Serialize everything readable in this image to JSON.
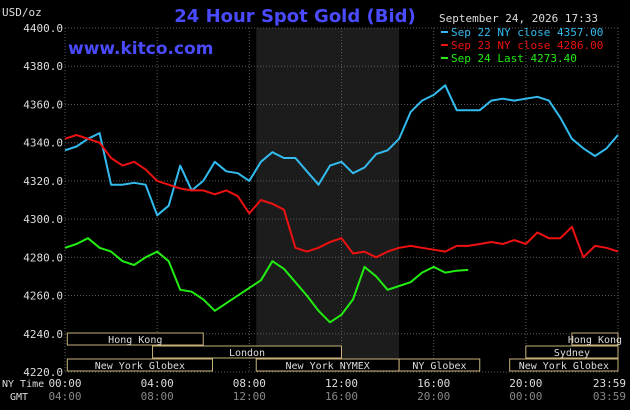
{
  "header": {
    "title": "24 Hour Spot Gold (Bid)",
    "units": "USD/oz",
    "website": "www.kitco.com",
    "datetime": "September 24, 2026 17:33"
  },
  "legend": [
    {
      "text": "Sep 22 NY close 4357.00",
      "color": "#33bbee"
    },
    {
      "text": "Sep 23 NY close 4286.00",
      "color": "#ee1111"
    },
    {
      "text": "Sep 24 Last 4273.40",
      "color": "#22ee11"
    }
  ],
  "chart_data": {
    "type": "line",
    "title": "24 Hour Spot Gold (Bid)",
    "ylabel": "USD/oz",
    "ylim": [
      4220,
      4400
    ],
    "yticks": [
      "4400.0",
      "4380.0",
      "4360.0",
      "4340.0",
      "4320.0",
      "4300.0",
      "4280.0",
      "4260.0",
      "4240.0",
      "4220.0"
    ],
    "xlim": [
      0,
      24
    ],
    "x_row_label": "NY Time",
    "x_row2_label": "GMT",
    "xticks_ny": [
      "00:00",
      "04:00",
      "08:00",
      "12:00",
      "16:00",
      "20:00",
      "23:59"
    ],
    "xticks_gmt": [
      "04:00",
      "08:00",
      "12:00",
      "16:00",
      "20:00",
      "00:00",
      "03:59"
    ],
    "grid": true,
    "legend_position": "top-right",
    "highlight_region": [
      8.3,
      14.5
    ],
    "series": [
      {
        "name": "Sep 22 NY close 4357.00",
        "color": "#33bbee",
        "x": [
          0,
          0.5,
          1,
          1.5,
          2,
          2.5,
          3,
          3.5,
          4,
          4.5,
          5,
          5.5,
          6,
          6.5,
          7,
          7.5,
          8,
          8.5,
          9,
          9.5,
          10,
          10.5,
          11,
          11.5,
          12,
          12.5,
          13,
          13.5,
          14,
          14.5,
          15,
          15.5,
          16,
          16.5,
          17,
          17.5,
          18,
          18.5,
          19,
          19.5,
          20,
          20.5,
          21,
          21.5,
          22,
          22.5,
          23,
          23.5,
          24
        ],
        "y": [
          4336,
          4338,
          4342,
          4345,
          4318,
          4318,
          4319,
          4318,
          4302,
          4307,
          4328,
          4315,
          4320,
          4330,
          4325,
          4324,
          4320,
          4330,
          4335,
          4332,
          4332,
          4325,
          4318,
          4328,
          4330,
          4324,
          4327,
          4334,
          4336,
          4342,
          4356,
          4362,
          4365,
          4370,
          4357,
          4357,
          4357,
          4362,
          4363,
          4362,
          4363,
          4364,
          4362,
          4353,
          4342,
          4337,
          4333,
          4337,
          4344
        ]
      },
      {
        "name": "Sep 23 NY close 4286.00",
        "color": "#ee1111",
        "x": [
          0,
          0.5,
          1,
          1.5,
          2,
          2.5,
          3,
          3.5,
          4,
          4.5,
          5,
          5.5,
          6,
          6.5,
          7,
          7.5,
          8,
          8.5,
          9,
          9.5,
          10,
          10.5,
          11,
          11.5,
          12,
          12.5,
          13,
          13.5,
          14,
          14.5,
          15,
          15.5,
          16,
          16.5,
          17,
          17.5,
          18,
          18.5,
          19,
          19.5,
          20,
          20.5,
          21,
          21.5,
          22,
          22.5,
          23,
          23.5,
          24
        ],
        "y": [
          4342,
          4344,
          4342,
          4340,
          4332,
          4328,
          4330,
          4326,
          4320,
          4318,
          4316,
          4315,
          4315,
          4313,
          4315,
          4312,
          4303,
          4310,
          4308,
          4305,
          4285,
          4283,
          4285,
          4288,
          4290,
          4282,
          4283,
          4280,
          4283,
          4285,
          4286,
          4285,
          4284,
          4283,
          4286,
          4286,
          4287,
          4288,
          4287,
          4289,
          4287,
          4293,
          4290,
          4290,
          4296,
          4280,
          4286,
          4285,
          4283
        ]
      },
      {
        "name": "Sep 24 Last 4273.40",
        "color": "#22ee11",
        "x": [
          0,
          0.5,
          1,
          1.5,
          2,
          2.5,
          3,
          3.5,
          4,
          4.5,
          5,
          5.5,
          6,
          6.5,
          7,
          7.5,
          8,
          8.5,
          9,
          9.5,
          10,
          10.5,
          11,
          11.5,
          12,
          12.5,
          13,
          13.5,
          14,
          14.5,
          15,
          15.5,
          16,
          16.5,
          17,
          17.5
        ],
        "y": [
          4285,
          4287,
          4290,
          4285,
          4283,
          4278,
          4276,
          4280,
          4283,
          4278,
          4263,
          4262,
          4258,
          4252,
          4256,
          4260,
          4264,
          4268,
          4278,
          4274,
          4267,
          4260,
          4252,
          4246,
          4250,
          4258,
          4275,
          4270,
          4263,
          4265,
          4267,
          4272,
          4275,
          4272,
          4273,
          4273.4
        ]
      }
    ]
  },
  "sessions": [
    {
      "label": "Hong Kong",
      "row": 0,
      "start": 0.1,
      "end": 6.0
    },
    {
      "label": "Hong Kong",
      "row": 0,
      "start": 22.0,
      "end": 24.0
    },
    {
      "label": "London",
      "row": 1,
      "start": 3.8,
      "end": 12.0
    },
    {
      "label": "Sydney",
      "row": 1,
      "start": 20.0,
      "end": 24.0
    },
    {
      "label": "New York Globex",
      "row": 2,
      "start": 0.1,
      "end": 6.4
    },
    {
      "label": "New York NYMEX",
      "row": 2,
      "start": 8.3,
      "end": 14.5
    },
    {
      "label": "NY Globex",
      "row": 2,
      "start": 14.5,
      "end": 18.0
    },
    {
      "label": "New York Globex",
      "row": 2,
      "start": 19.3,
      "end": 24.0
    }
  ]
}
